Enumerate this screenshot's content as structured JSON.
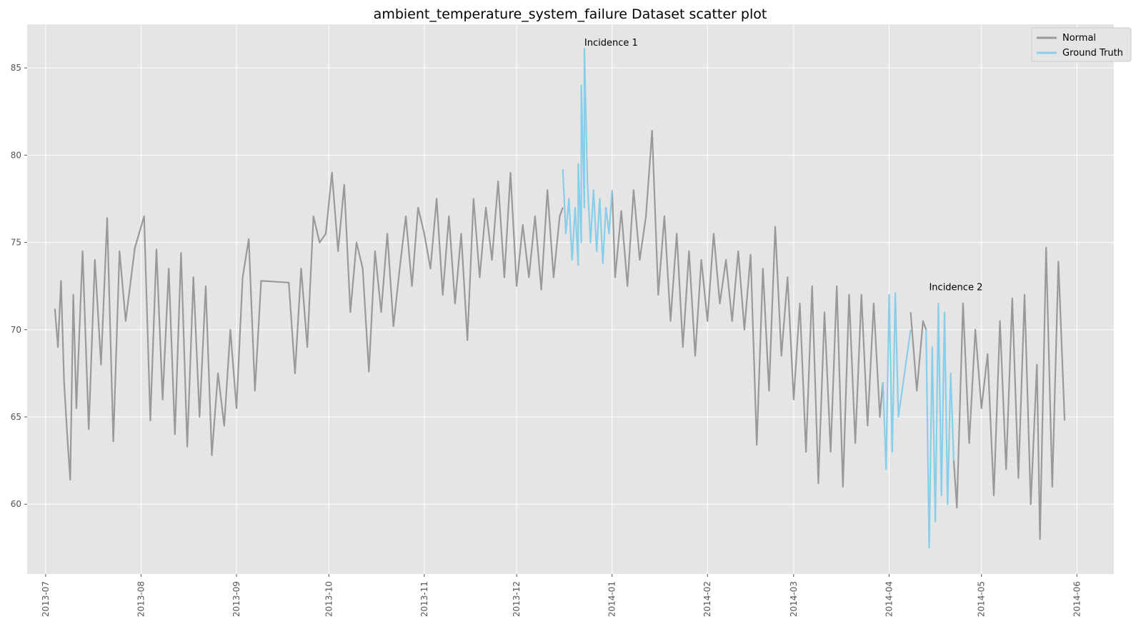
{
  "chart_data": {
    "type": "line",
    "title": "ambient_temperature_system_failure Dataset scatter plot",
    "xlabel": "",
    "ylabel": "",
    "x_axis_type": "date",
    "xlim": [
      "2013-06-25",
      "2014-06-13"
    ],
    "ylim": [
      56,
      87.5
    ],
    "x_ticks": [
      "2013-07",
      "2013-08",
      "2013-09",
      "2013-10",
      "2013-11",
      "2013-12",
      "2014-01",
      "2014-02",
      "2014-03",
      "2014-04",
      "2014-05",
      "2014-06"
    ],
    "y_ticks": [
      60,
      65,
      70,
      75,
      80,
      85
    ],
    "grid": true,
    "background": "#e5e5e5",
    "legend_position": "top-right",
    "series": [
      {
        "name": "Normal",
        "color": "#999999",
        "x": [
          "2013-07-04",
          "2013-07-05",
          "2013-07-06",
          "2013-07-07",
          "2013-07-08",
          "2013-07-09",
          "2013-07-10",
          "2013-07-11",
          "2013-07-13",
          "2013-07-15",
          "2013-07-17",
          "2013-07-19",
          "2013-07-21",
          "2013-07-23",
          "2013-07-25",
          "2013-07-27",
          "2013-07-30",
          "2013-08-02",
          "2013-08-04",
          "2013-08-06",
          "2013-08-08",
          "2013-08-10",
          "2013-08-12",
          "2013-08-14",
          "2013-08-16",
          "2013-08-18",
          "2013-08-20",
          "2013-08-22",
          "2013-08-24",
          "2013-08-26",
          "2013-08-28",
          "2013-08-30",
          "2013-09-01",
          "2013-09-03",
          "2013-09-05",
          "2013-09-07",
          "2013-09-09",
          "2013-09-18",
          "2013-09-20",
          "2013-09-22",
          "2013-09-24",
          "2013-09-26",
          "2013-09-28",
          "2013-09-30",
          "2013-10-02",
          "2013-10-04",
          "2013-10-06",
          "2013-10-08",
          "2013-10-10",
          "2013-10-12",
          "2013-10-14",
          "2013-10-16",
          "2013-10-18",
          "2013-10-20",
          "2013-10-22",
          "2013-10-24",
          "2013-10-26",
          "2013-10-28",
          "2013-10-30",
          "2013-11-01",
          "2013-11-03",
          "2013-11-05",
          "2013-11-07",
          "2013-11-09",
          "2013-11-11",
          "2013-11-13",
          "2013-11-15",
          "2013-11-17",
          "2013-11-19",
          "2013-11-21",
          "2013-11-23",
          "2013-11-25",
          "2013-11-27",
          "2013-11-29",
          "2013-12-01",
          "2013-12-03",
          "2013-12-05",
          "2013-12-07",
          "2013-12-09",
          "2013-12-11",
          "2013-12-13",
          "2013-12-15",
          "2013-12-16",
          null,
          "2014-01-01",
          "2014-01-02",
          "2014-01-04",
          "2014-01-06",
          "2014-01-08",
          "2014-01-10",
          "2014-01-12",
          "2014-01-14",
          "2014-01-16",
          "2014-01-18",
          "2014-01-20",
          "2014-01-22",
          "2014-01-24",
          "2014-01-26",
          "2014-01-28",
          "2014-01-30",
          "2014-02-01",
          "2014-02-03",
          "2014-02-05",
          "2014-02-07",
          "2014-02-09",
          "2014-02-11",
          "2014-02-13",
          "2014-02-15",
          "2014-02-17",
          "2014-02-19",
          "2014-02-21",
          "2014-02-23",
          "2014-02-25",
          "2014-02-27",
          "2014-03-01",
          "2014-03-03",
          "2014-03-05",
          "2014-03-07",
          "2014-03-09",
          "2014-03-11",
          "2014-03-13",
          "2014-03-15",
          "2014-03-17",
          "2014-03-19",
          "2014-03-21",
          "2014-03-23",
          "2014-03-25",
          "2014-03-27",
          "2014-03-29",
          "2014-03-30",
          null,
          "2014-04-08",
          "2014-04-10",
          "2014-04-12",
          "2014-04-13",
          null,
          "2014-04-22",
          "2014-04-23",
          "2014-04-25",
          "2014-04-27",
          "2014-04-29",
          "2014-05-01",
          "2014-05-03",
          "2014-05-05",
          "2014-05-07",
          "2014-05-09",
          "2014-05-11",
          "2014-05-13",
          "2014-05-15",
          "2014-05-17",
          "2014-05-19",
          "2014-05-20",
          "2014-05-22",
          "2014-05-24",
          "2014-05-26",
          "2014-05-28"
        ],
        "y": [
          71.2,
          69.0,
          72.8,
          67.0,
          64.0,
          61.4,
          72.0,
          65.5,
          74.5,
          64.3,
          74.0,
          68.0,
          76.4,
          63.6,
          74.5,
          70.5,
          74.7,
          76.5,
          64.8,
          74.6,
          66.0,
          73.5,
          64.0,
          74.4,
          63.3,
          73.0,
          65.0,
          72.5,
          62.8,
          67.5,
          64.5,
          70.0,
          65.5,
          73.0,
          75.2,
          66.5,
          72.8,
          72.7,
          67.5,
          73.5,
          69.0,
          76.5,
          75.0,
          75.5,
          79.0,
          74.5,
          78.3,
          71.0,
          75.0,
          73.5,
          67.6,
          74.5,
          71.0,
          75.5,
          70.2,
          73.5,
          76.5,
          72.5,
          77.0,
          75.5,
          73.5,
          77.5,
          72.0,
          76.5,
          71.5,
          75.5,
          69.4,
          77.5,
          73.0,
          77.0,
          74.0,
          78.5,
          73.0,
          79.0,
          72.5,
          76.0,
          73.0,
          76.5,
          72.3,
          78.0,
          73.0,
          76.5,
          77.0,
          null,
          78.0,
          73.0,
          76.8,
          72.5,
          78.0,
          74.0,
          76.5,
          81.4,
          72.0,
          76.5,
          70.5,
          75.5,
          69.0,
          74.5,
          68.5,
          74.0,
          70.5,
          75.5,
          71.5,
          74.0,
          70.5,
          74.5,
          70.0,
          74.3,
          63.4,
          73.5,
          66.5,
          75.9,
          68.5,
          73.0,
          66.0,
          71.5,
          63.0,
          72.5,
          61.2,
          71.0,
          63.0,
          72.5,
          61.0,
          72.0,
          63.5,
          72.0,
          64.5,
          71.5,
          65.0,
          67.0,
          null,
          71.0,
          66.5,
          70.5,
          70.0,
          null,
          62.5,
          59.8,
          71.5,
          63.5,
          70.0,
          65.5,
          68.6,
          60.5,
          70.5,
          62.0,
          71.8,
          61.5,
          72.0,
          60.0,
          68.0,
          58.0,
          74.7,
          61.0,
          73.9,
          64.8
        ]
      },
      {
        "name": "Ground Truth",
        "color": "#87ceeb",
        "x": [
          "2013-12-16",
          "2013-12-17",
          "2013-12-18",
          "2013-12-19",
          "2013-12-20",
          "2013-12-21",
          "2013-12-21",
          "2013-12-22",
          "2013-12-22",
          "2013-12-23",
          "2013-12-23",
          "2013-12-24",
          "2013-12-25",
          "2013-12-26",
          "2013-12-27",
          "2013-12-28",
          "2013-12-29",
          "2013-12-30",
          "2013-12-31",
          "2014-01-01",
          null,
          "2014-03-30",
          "2014-03-31",
          "2014-04-01",
          "2014-04-02",
          "2014-04-03",
          "2014-04-04",
          "2014-04-08",
          null,
          "2014-04-13",
          "2014-04-14",
          "2014-04-15",
          "2014-04-16",
          "2014-04-17",
          "2014-04-18",
          "2014-04-19",
          "2014-04-20",
          "2014-04-21",
          "2014-04-22"
        ],
        "y": [
          79.2,
          75.5,
          77.5,
          74.0,
          77.0,
          73.7,
          79.5,
          75.0,
          84.0,
          77.0,
          86.1,
          78.5,
          75.0,
          78.0,
          74.5,
          77.5,
          73.8,
          77.0,
          75.5,
          78.0,
          null,
          67.0,
          62.0,
          72.0,
          63.0,
          72.1,
          65.0,
          70.0,
          null,
          70.0,
          57.5,
          69.0,
          59.0,
          71.5,
          60.5,
          71.0,
          60.0,
          67.5,
          62.5
        ]
      }
    ],
    "annotations": [
      {
        "text": "Incidence 1",
        "x": "2013-12-23",
        "y": 86.1
      },
      {
        "text": "Incidence 2",
        "x": "2014-04-14",
        "y": 72.1
      }
    ]
  }
}
